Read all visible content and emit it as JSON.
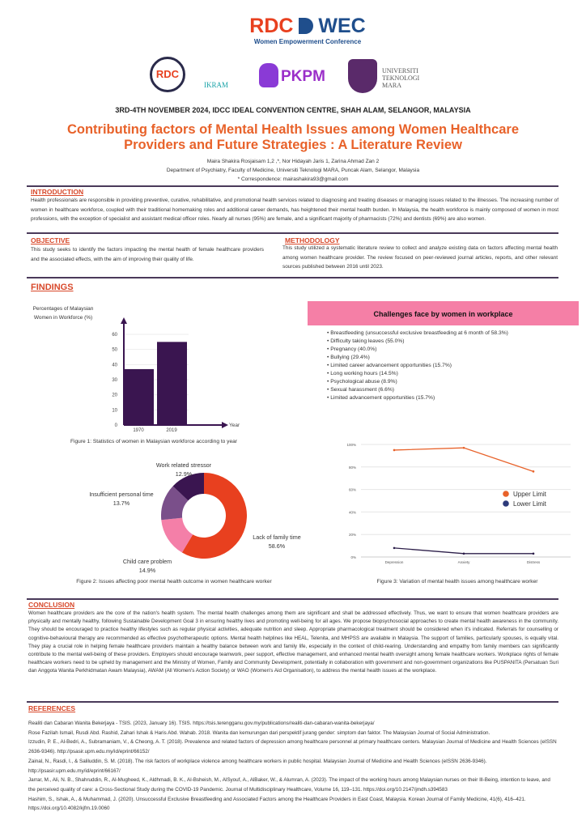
{
  "header": {
    "main_logo_text_a": "RDC",
    "main_logo_text_b": "WEC",
    "main_logo_subtitle": "Women Empowerment Conference",
    "logos": [
      "RDC",
      "IKRAM",
      "PKPM",
      "UNIVERSITI TEKNOLOGI MARA"
    ],
    "date_line": "3RD-4TH NOVEMBER 2024, IDCC IDEAL CONVENTION CENTRE, SHAH ALAM, SELANGOR, MALAYSIA",
    "title_line1": "Contributing factors of Mental Health Issues among Women Healthcare",
    "title_line2": "Providers and Future Strategies : A Literature Review",
    "authors": "Maira Shakira Rosjaisam 1,2 ,*, Nor Hidayah Jaris 1, Zarina Ahmad Zan 2",
    "affiliation": "Department of Psychiatry, Faculty of Medicine, Universiti Teknologi MARA, Puncak Alam, Selangor, Malaysia",
    "correspondence": "* Correspondence: mairashakira93@gmail.com"
  },
  "colors": {
    "accent": "#e8622a",
    "heading": "#d8482a",
    "purple": "#3a1550",
    "pink": "#f57fa6"
  },
  "introduction": {
    "heading": "INTRODUCTION",
    "text": "Health professionals are responsible in providing preventive, curative, rehabilitative, and promotional health services related to diagnosing and treating diseases or managing issues related to the illnesses. The increasing number of women in healthcare workforce, coupled with their traditional homemaking roles and additional career demands, has heightened their mental health burden. In Malaysia, the health workforce is mainly composed of women in most professions, with the exception of specialist and assistant medical officer roles. Nearly all nurses (95%) are female, and a significant majority of pharmacists (72%) and dentists (69%) are also women."
  },
  "objective": {
    "heading": "OBJECTIVE",
    "text": "This study seeks to identify the factors impacting the mental health of female healthcare providers and the associated effects, with the aim of improving their quality of life."
  },
  "methodology": {
    "heading": "METHODOLOGY",
    "text": "This study utilized a systematic literature review to collect and analyze existing data on factors affecting mental health among women healthcare provider. The review focused on peer-reviewed journal articles, reports, and other relevant sources published between 2016 until 2023."
  },
  "findings": {
    "heading": "FINDINGS",
    "challenges_title": "Challenges face by women in workplace",
    "challenges": [
      "Breastfeeding (unsuccessful exclusive breastfeeding at 6 month of 58.3%)",
      "Difficulty taking leaves (55.0%)",
      "Pregnancy (40.0%)",
      "Bullying (29.4%)",
      "Limited career advancement opportunities (15.7%)",
      "Long working hours (14.5%)",
      "Psychological abuse (8.9%)",
      "Sexual harassment (6.6%)",
      "Limited advancement opportunities (15.7%)"
    ]
  },
  "chart_data": [
    {
      "type": "bar",
      "ylabel": "Percentages of Malaysian Women in Workforce (%)",
      "xlabel": "Year",
      "categories": [
        "1970",
        "2019"
      ],
      "values": [
        37,
        55
      ],
      "ylim": [
        0,
        60
      ],
      "yticks": [
        "0",
        "10",
        "20",
        "30",
        "40",
        "50",
        "60"
      ],
      "caption": "Figure 1: Statistics of women in Malaysian workforce according to year",
      "color": "#3a1550"
    },
    {
      "type": "pie",
      "donut": true,
      "labels": [
        "Lack of family time",
        "Child care problem",
        "Insufficient personal time",
        "Work related stressor"
      ],
      "values": [
        58.6,
        14.9,
        13.7,
        12.9
      ],
      "value_labels": [
        "58.6%",
        "14.9%",
        "13.7%",
        "12.9%"
      ],
      "colors": [
        "#e8401f",
        "#f47fa8",
        "#7a4f8a",
        "#3a1550"
      ],
      "caption": "Figure 2: Issues affecting poor mental health outcome in women healthcare worker"
    },
    {
      "type": "line",
      "categories": [
        "Depression",
        "Anxiety",
        "Distress"
      ],
      "series": [
        {
          "name": "Upper Limit",
          "values": [
            95,
            97,
            76
          ],
          "color": "#e8622a"
        },
        {
          "name": "Lower Limit",
          "values": [
            8,
            3,
            3
          ],
          "color": "#2d1f4a"
        }
      ],
      "ylim": [
        0,
        100
      ],
      "yticks": [
        "0%",
        "20%",
        "40%",
        "60%",
        "80%",
        "100%"
      ],
      "grid": true,
      "legend": "right",
      "caption": "Figure 3: Variation of mental health issues among healthcare worker"
    }
  ],
  "conclusion": {
    "heading": "CONCLUSION",
    "text": "Women healthcare providers are the core of the nation's health system. The mental health challenges among them are significant and shall be addressed effectively. Thus, we want to ensure that women healthcare providers are physically and mentally healthy, following Sustainable Development Goal 3 in ensuring healthy lives and promoting well-being for all ages. We propose biopsychosocial approaches to create mental health awareness in the community. They should be encouraged to practice healthy lifestyles such as regular physical activities, adequate nutrition and sleep. Appropriate pharmacological treatment should be considered when it's indicated. Referrals for counselling or cognitive-behavioural therapy are recommended as effective psychotherapeutic options. Mental health helplines like HEAL, Telenita, and MHPSS are available in Malaysia. The support of families, particularly spouses, is equally vital. They play a crucial role in helping female healthcare providers maintain a healthy balance between work and family life, especially in the context of child-rearing. Understanding and empathy from family members can significantly contribute to the mental well-being of these providers. Employers should encourage teamwork, peer support, effective management, and enhanced mental health oversight among female healthcare workers. Workplace rights of female healthcare workers need to be upheld by management and the Ministry of Women, Family and Community Development, potentially in collaboration with government and non-government organizations like PUSPANITA (Persatuan Suri dan Anggota Wanita Perkhidmatan Awam Malaysia), AWAM (All Women's Action Society) or WAO (Women's Aid Organisation), to address the mental health issues at the workplace."
  },
  "references": {
    "heading": "REFERENCES",
    "items": [
      "Realiti dan Cabaran Wanita Bekerjaya - TSIS. (2023, January 16). TSIS. https://tsis.terengganu.gov.my/publications/realiti-dan-cabaran-wanita-bekerjaya/",
      "Rose Fazilah Ismail, Rusdi Abd. Rashid, Zahari Ishak & Haris Abd. Wahab. 2018. Wanita dan kemurungan dari perspektif jurang gender: simptom dan faktor. The Malaysian Journal of Social Administration.",
      "Izzudin, P. E., Al-Bedri, A., Subramaniam, V., & Cheong, A. T. (2018). Prevalence and related factors of depression among healthcare personnel at primary healthcare centers. Malaysian Journal of Medicine and Health Sciences (eISSN 2636-9346). http://psasir.upm.edu.my/id/eprint/66152/",
      "Zainal, N., Rasdi, I., & Saliluddin, S. M. (2018). The risk factors of workplace violence among healthcare workers in public hospital. Malaysian Journal of Medicine and Health Sciences (eISSN 2636-9346). http://psasir.upm.edu.my/id/eprint/66167/",
      "Jarrar, M., Ali, N. B., Shahruddin, R., Al-Mugheed, K., Aldhmadi, B. K., Al-Bsheish, M., AlSyouf, A., AlBaker, W., & Alumran, A. (2023). The impact of the working hours among Malaysian nurses on their Ill-Being, intention to leave, and the perceived quality of care: a Cross-Sectional Study during the COVID-19 Pandemic. Journal of Multidisciplinary Healthcare, Volume 16, 119–131. https://doi.org/10.2147/jmdh.s394583",
      "Hashim, S., Ishak, A., & Muhammad, J. (2020). Unsuccessful Exclusive Breastfeeding and Associated Factors among the Healthcare Providers in East Coast, Malaysia. Korean Journal of Family Medicine, 41(6), 416–421. https://doi.org/10.4082/kjfm.19.0060"
    ]
  }
}
